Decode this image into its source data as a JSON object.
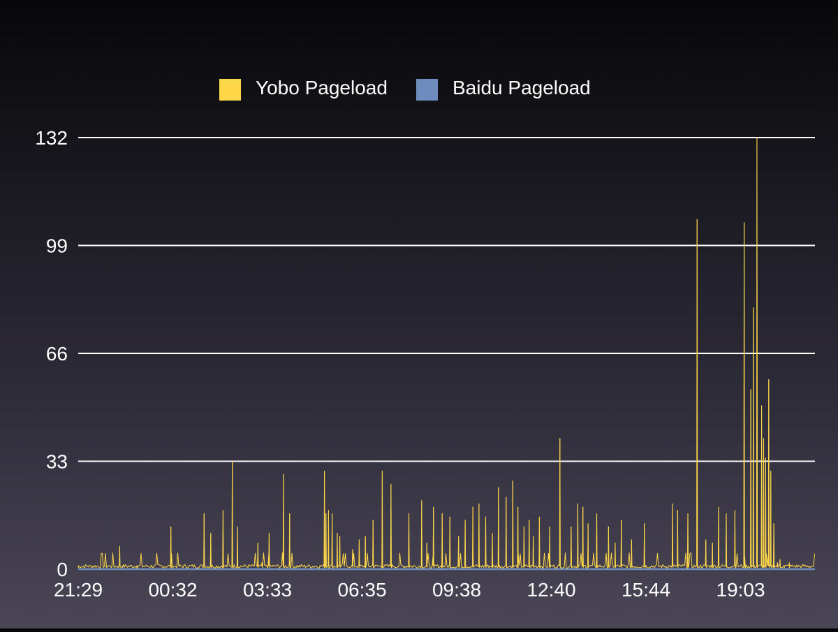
{
  "chart_data": {
    "type": "line",
    "title": "",
    "xlabel": "",
    "ylabel": "",
    "ylim": [
      0,
      132
    ],
    "yticks": [
      0,
      33,
      66,
      99,
      132
    ],
    "xtick_labels": [
      "21:29",
      "00:32",
      "03:33",
      "06:35",
      "09:38",
      "12:40",
      "15:44",
      "19:03"
    ],
    "grid": true,
    "legend_position": "top-center",
    "legend": [
      {
        "name": "Yobo Pageload",
        "color": "#ffd84a"
      },
      {
        "name": "Baidu Pageload",
        "color": "#6f8cbf"
      }
    ],
    "series": [
      {
        "name": "Yobo Pageload",
        "color": "#ffd84a",
        "baseline": 1,
        "x": [
          "21:29",
          "22:50",
          "23:24",
          "00:30",
          "01:35",
          "01:48",
          "02:12",
          "02:30",
          "02:40",
          "03:20",
          "03:28",
          "03:42",
          "04:10",
          "04:22",
          "05:30",
          "05:33",
          "05:38",
          "05:45",
          "05:55",
          "06:00",
          "06:25",
          "06:38",
          "06:50",
          "07:05",
          "07:23",
          "07:40",
          "08:15",
          "08:40",
          "08:50",
          "09:03",
          "09:20",
          "09:35",
          "09:52",
          "10:05",
          "10:20",
          "10:32",
          "10:45",
          "10:58",
          "11:10",
          "11:25",
          "11:38",
          "11:48",
          "12:00",
          "12:10",
          "12:18",
          "12:30",
          "12:50",
          "13:10",
          "13:32",
          "13:45",
          "13:55",
          "14:05",
          "14:22",
          "14:45",
          "14:58",
          "15:10",
          "15:30",
          "15:55",
          "16:50",
          "17:00",
          "17:20",
          "17:38",
          "17:55",
          "18:08",
          "18:20",
          "18:35",
          "18:52",
          "19:10",
          "19:23",
          "19:28",
          "19:35",
          "19:44",
          "19:48",
          "19:52",
          "19:58",
          "20:02",
          "20:08",
          "20:15",
          "20:20",
          "20:28",
          "20:38"
        ],
        "y": [
          1,
          7,
          1,
          13,
          17,
          11,
          18,
          33,
          13,
          8,
          2,
          11,
          29,
          17,
          30,
          17,
          18,
          17,
          11,
          10,
          6,
          9,
          10,
          15,
          30,
          26,
          17,
          21,
          8,
          19,
          17,
          16,
          10,
          15,
          19,
          20,
          16,
          11,
          25,
          22,
          27,
          19,
          13,
          15,
          10,
          16,
          13,
          40,
          13,
          20,
          19,
          14,
          17,
          13,
          8,
          15,
          9,
          14,
          20,
          18,
          17,
          107,
          9,
          8,
          19,
          17,
          18,
          106,
          55,
          80,
          132,
          50,
          40,
          34,
          58,
          30,
          14,
          2,
          3,
          1,
          2
        ]
      },
      {
        "name": "Baidu Pageload",
        "color": "#6f8cbf",
        "baseline": 0,
        "x": [],
        "y": []
      }
    ]
  }
}
